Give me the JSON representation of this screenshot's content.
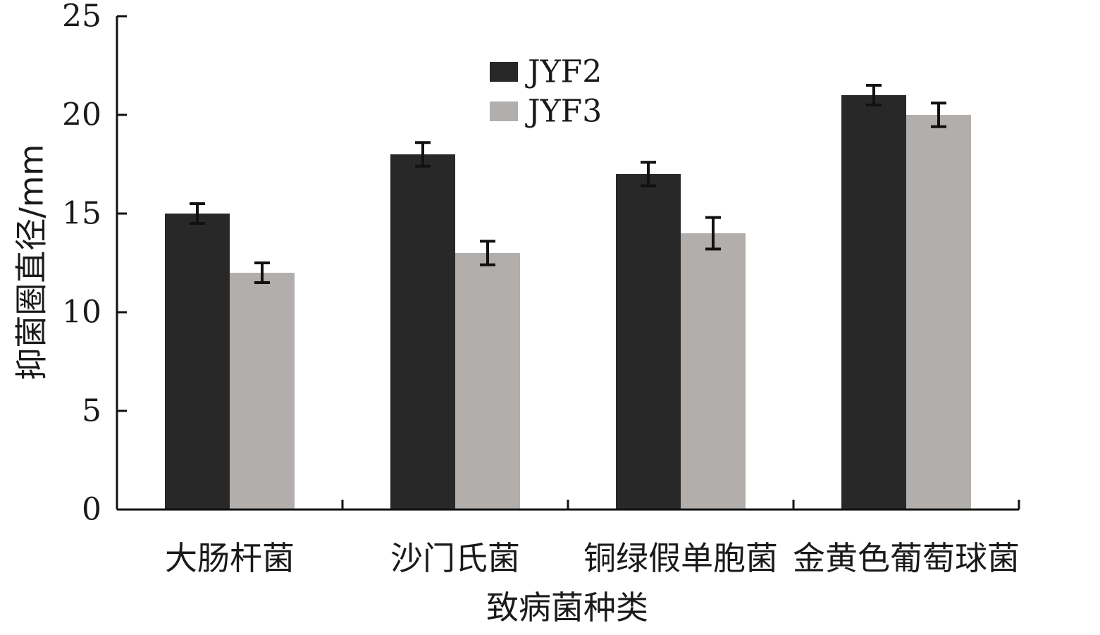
{
  "chart_data": {
    "type": "bar",
    "categories": [
      "大肠杆菌",
      "沙门氏菌",
      "铜绿假单胞菌",
      "金黄色葡萄球菌"
    ],
    "series": [
      {
        "name": "JYF2",
        "values": [
          15,
          18,
          17,
          21
        ],
        "errors": [
          0.5,
          0.6,
          0.6,
          0.5
        ],
        "color": "#282828"
      },
      {
        "name": "JYF3",
        "values": [
          12,
          13,
          14,
          20
        ],
        "errors": [
          0.5,
          0.6,
          0.8,
          0.6
        ],
        "color": "#b1aeab"
      }
    ],
    "title": "",
    "xlabel": "致病菌种类",
    "ylabel": "抑菌圈直径/mm",
    "ylim": [
      0,
      25
    ],
    "yticks": [
      0,
      5,
      10,
      15,
      20,
      25
    ],
    "grid": false,
    "legend_position": "top-center"
  }
}
